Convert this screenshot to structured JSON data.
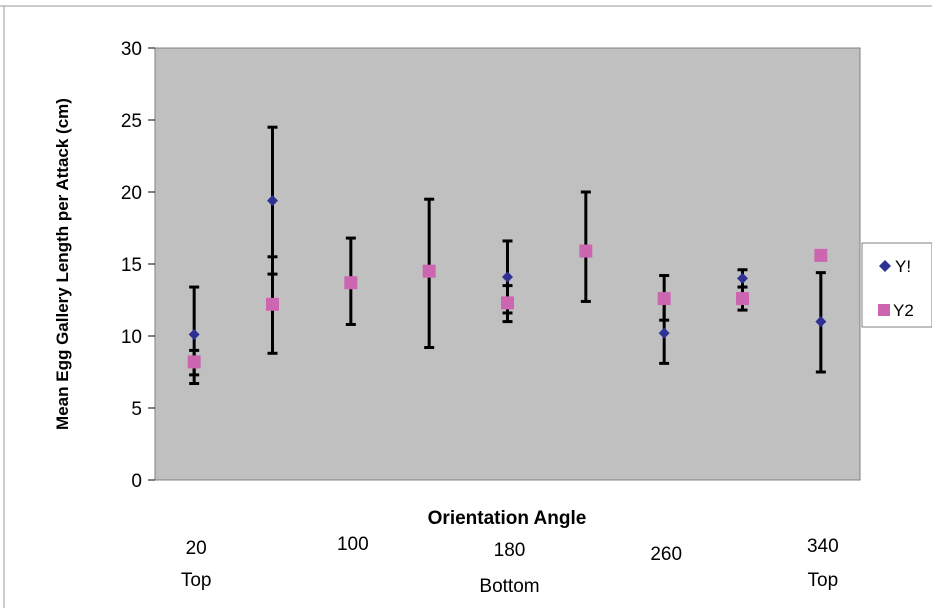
{
  "chart_data": {
    "type": "scatter",
    "title": "",
    "xlabel": "Orientation Angle",
    "ylabel": "Mean Egg Gallery Length per Attack (cm)",
    "xlim": [
      0,
      360
    ],
    "ylim": [
      0,
      30
    ],
    "yticks": [
      0,
      5,
      10,
      15,
      20,
      25,
      30
    ],
    "x_tick_labels": [
      {
        "x": 20,
        "label": "20"
      },
      {
        "x": 100,
        "label": "100"
      },
      {
        "x": 180,
        "label": "180"
      },
      {
        "x": 260,
        "label": "260"
      },
      {
        "x": 340,
        "label": "340"
      }
    ],
    "x_sub_labels": [
      {
        "x": 20,
        "label": "Top"
      },
      {
        "x": 180,
        "label": "Bottom"
      },
      {
        "x": 340,
        "label": "Top"
      }
    ],
    "grid": false,
    "legend_position": "right",
    "series": [
      {
        "name": "Y!",
        "marker": "diamond",
        "color": "#2E3192",
        "points": [
          {
            "x": 20,
            "y": 10.1,
            "lo": 6.7,
            "hi": 13.4
          },
          {
            "x": 60,
            "y": 19.4,
            "lo": 14.3,
            "hi": 24.5
          },
          {
            "x": 180,
            "y": 14.1,
            "lo": 11.6,
            "hi": 16.6
          },
          {
            "x": 260,
            "y": 10.2,
            "lo": 8.1,
            "hi": 12.4
          },
          {
            "x": 300,
            "y": 14.0,
            "lo": 13.4,
            "hi": 14.6
          },
          {
            "x": 340,
            "y": 11.0,
            "lo": 7.5,
            "hi": 14.4
          }
        ]
      },
      {
        "name": "Y2",
        "marker": "square",
        "color": "#CC66B0",
        "points": [
          {
            "x": 20,
            "y": 8.2,
            "lo": 7.3,
            "hi": 9.0
          },
          {
            "x": 60,
            "y": 12.2,
            "lo": 8.8,
            "hi": 15.5
          },
          {
            "x": 100,
            "y": 13.7,
            "lo": 10.8,
            "hi": 16.8
          },
          {
            "x": 140,
            "y": 14.5,
            "lo": 9.2,
            "hi": 19.5
          },
          {
            "x": 180,
            "y": 12.3,
            "lo": 11.0,
            "hi": 13.5
          },
          {
            "x": 220,
            "y": 15.9,
            "lo": 12.4,
            "hi": 20.0
          },
          {
            "x": 260,
            "y": 12.6,
            "lo": 11.1,
            "hi": 14.2
          },
          {
            "x": 300,
            "y": 12.6,
            "lo": 11.8,
            "hi": 13.4
          },
          {
            "x": 340,
            "y": 15.6,
            "lo": null,
            "hi": null
          }
        ]
      }
    ],
    "plot_area_color": "#C0C0C0",
    "error_bar_color": "#000000"
  }
}
